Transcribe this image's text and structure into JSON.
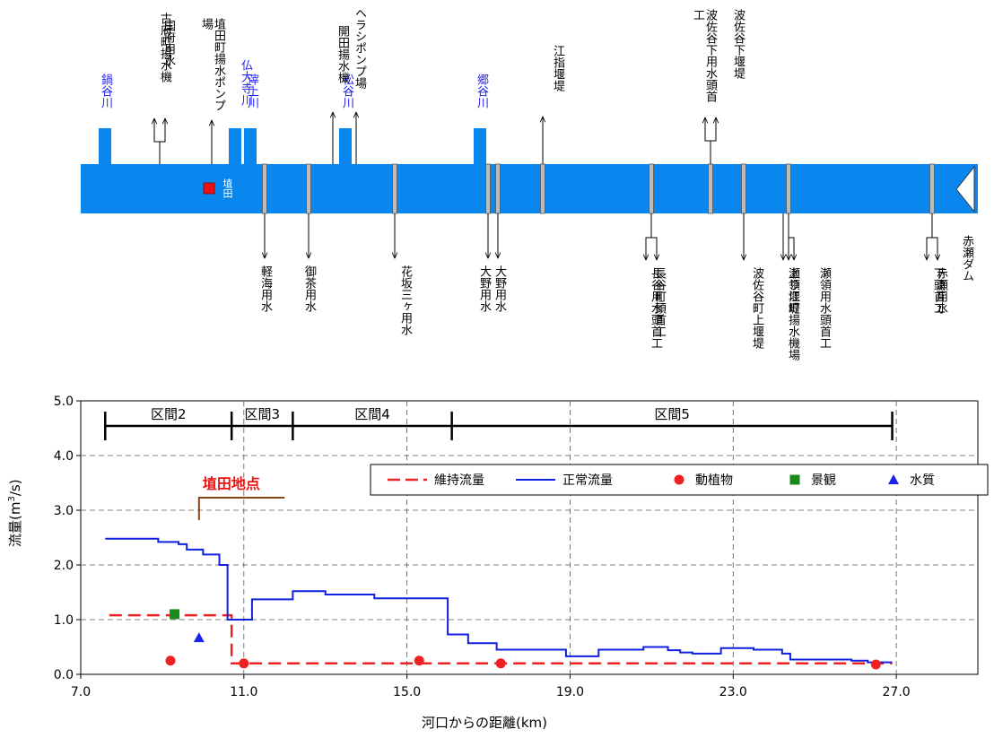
{
  "colors": {
    "river": "#0a86ef",
    "blue_label": "#2222ee",
    "sensor": "#ee1111",
    "maintenance": "#ee2222",
    "normal": "#1020e0",
    "fauna": "#ee2222",
    "landscape": "#1a8a1a",
    "water_quality": "#1a22ee",
    "annotation": "#ee1111",
    "bracket": "#8b4513"
  },
  "schematic": {
    "tributaries": [
      "鍋谷川",
      "仏大寺川",
      "滓上川",
      "松谷川",
      "郷谷川"
    ],
    "top_facilities": [
      [
        "古府町揚水機",
        "国府用水"
      ],
      [
        "埴田町揚水ポンプ場"
      ],
      [
        "開田揚水機",
        "ヘラシポンプ場"
      ],
      [
        "江指堰堤"
      ],
      [
        "波佐谷下用水頭首工",
        "波佐谷下堰堤"
      ]
    ],
    "bottom_facilities": [
      [
        "軽海用水"
      ],
      [
        "御茶用水"
      ],
      [
        "花坂三ヶ用水"
      ],
      [
        "大野用水",
        "大野用水"
      ],
      [
        "長谷用水頭首工",
        "長谷町頭首工"
      ],
      [
        "波佐谷町上堰堤"
      ],
      [
        "上り江町揚水機場",
        "瀬領堰堤",
        "瀬領用水頭首工"
      ],
      [
        "下頭首工",
        "赤瀬用水"
      ]
    ],
    "sensor_label": "埴田",
    "dam_label": "赤瀬ダム"
  },
  "chart_data": {
    "type": "line",
    "xlabel": "河口からの距離(km)",
    "ylabel": "流量(m3/s)",
    "xlim": [
      7.0,
      29.0
    ],
    "ylim": [
      0.0,
      5.0
    ],
    "xticks": [
      "7.0",
      "11.0",
      "15.0",
      "19.0",
      "23.0",
      "27.0"
    ],
    "xtick_values": [
      7,
      11,
      15,
      19,
      23,
      27
    ],
    "yticks": [
      "0.0",
      "1.0",
      "2.0",
      "3.0",
      "4.0",
      "5.0"
    ],
    "grid": "vertical dashed at x ticks, horizontal dashed at y ticks",
    "sections": [
      {
        "label": "区間2",
        "start": 7.6,
        "end": 10.7
      },
      {
        "label": "区間3",
        "start": 10.7,
        "end": 12.2
      },
      {
        "label": "区間4",
        "start": 12.2,
        "end": 16.1
      },
      {
        "label": "区間5",
        "start": 16.1,
        "end": 26.9
      }
    ],
    "annotation": {
      "label": "埴田地点",
      "x": 9.9
    },
    "legend_position": "top-right",
    "series": [
      {
        "name": "維持流量",
        "style": "dashed",
        "points": [
          [
            7.7,
            1.08
          ],
          [
            10.7,
            1.08
          ],
          [
            10.7,
            0.2
          ],
          [
            26.9,
            0.2
          ]
        ]
      },
      {
        "name": "正常流量",
        "style": "step",
        "points": [
          [
            7.6,
            2.48
          ],
          [
            8.9,
            2.48
          ],
          [
            8.9,
            2.42
          ],
          [
            9.4,
            2.42
          ],
          [
            9.4,
            2.38
          ],
          [
            9.6,
            2.38
          ],
          [
            9.6,
            2.28
          ],
          [
            10.0,
            2.28
          ],
          [
            10.0,
            2.19
          ],
          [
            10.4,
            2.19
          ],
          [
            10.4,
            2.0
          ],
          [
            10.6,
            2.0
          ],
          [
            10.6,
            1.0
          ],
          [
            11.2,
            1.0
          ],
          [
            11.2,
            1.37
          ],
          [
            12.2,
            1.37
          ],
          [
            12.2,
            1.52
          ],
          [
            13.0,
            1.52
          ],
          [
            13.0,
            1.46
          ],
          [
            14.2,
            1.46
          ],
          [
            14.2,
            1.39
          ],
          [
            16.0,
            1.39
          ],
          [
            16.0,
            0.73
          ],
          [
            16.5,
            0.73
          ],
          [
            16.5,
            0.57
          ],
          [
            17.2,
            0.57
          ],
          [
            17.2,
            0.45
          ],
          [
            18.9,
            0.45
          ],
          [
            18.9,
            0.33
          ],
          [
            19.7,
            0.33
          ],
          [
            19.7,
            0.45
          ],
          [
            20.8,
            0.45
          ],
          [
            20.8,
            0.5
          ],
          [
            21.4,
            0.5
          ],
          [
            21.4,
            0.44
          ],
          [
            21.7,
            0.44
          ],
          [
            21.7,
            0.4
          ],
          [
            22.0,
            0.4
          ],
          [
            22.0,
            0.38
          ],
          [
            22.7,
            0.38
          ],
          [
            22.7,
            0.48
          ],
          [
            23.5,
            0.48
          ],
          [
            23.5,
            0.45
          ],
          [
            24.2,
            0.45
          ],
          [
            24.2,
            0.38
          ],
          [
            24.4,
            0.38
          ],
          [
            24.4,
            0.27
          ],
          [
            25.9,
            0.27
          ],
          [
            25.9,
            0.25
          ],
          [
            26.3,
            0.25
          ],
          [
            26.3,
            0.22
          ],
          [
            26.9,
            0.22
          ]
        ]
      },
      {
        "name": "動植物",
        "style": "marker-circle",
        "points": [
          [
            9.2,
            0.25
          ],
          [
            11.0,
            0.2
          ],
          [
            15.3,
            0.25
          ],
          [
            17.3,
            0.2
          ],
          [
            26.5,
            0.18
          ]
        ]
      },
      {
        "name": "景観",
        "style": "marker-square",
        "points": [
          [
            9.3,
            1.1
          ]
        ]
      },
      {
        "name": "水質",
        "style": "marker-triangle",
        "points": [
          [
            9.9,
            0.67
          ]
        ]
      }
    ]
  }
}
